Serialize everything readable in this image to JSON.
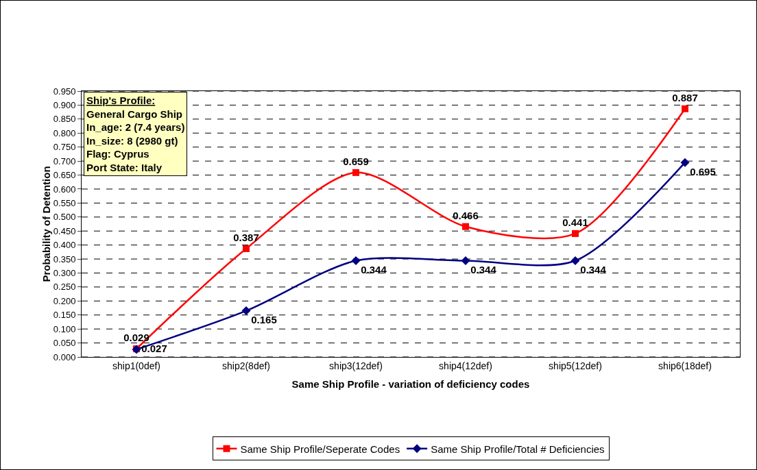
{
  "chart_data": {
    "type": "line",
    "xlabel": "Same Ship Profile - variation of deficiency codes",
    "ylabel": "Probability of Detention",
    "categories": [
      "ship1(0def)",
      "ship2(8def)",
      "ship3(12def)",
      "ship4(12def)",
      "ship5(12def)",
      "ship6(18def)"
    ],
    "series": [
      {
        "name": "Same Ship Profile/Seperate Codes",
        "color": "#ff0000",
        "marker": "square",
        "values": [
          0.029,
          0.387,
          0.659,
          0.466,
          0.441,
          0.887
        ]
      },
      {
        "name": "Same Ship Profile/Total # Deficiencies",
        "color": "#000080",
        "marker": "diamond",
        "values": [
          0.027,
          0.165,
          0.344,
          0.344,
          0.344,
          0.695
        ]
      }
    ],
    "ylim": [
      0,
      0.95
    ],
    "yticks": [
      {
        "value": 0,
        "label": "0.000"
      },
      {
        "value": 0.05,
        "label": "0.050"
      },
      {
        "value": 0.1,
        "label": "0.100"
      },
      {
        "value": 0.15,
        "label": "0.150"
      },
      {
        "value": 0.2,
        "label": "0.200"
      },
      {
        "value": 0.25,
        "label": "0.250"
      },
      {
        "value": 0.3,
        "label": "0.300"
      },
      {
        "value": 0.35,
        "label": "0.350"
      },
      {
        "value": 0.4,
        "label": "0.400"
      },
      {
        "value": 0.45,
        "label": "0.450"
      },
      {
        "value": 0.5,
        "label": "0.500"
      },
      {
        "value": 0.55,
        "label": "0.550"
      },
      {
        "value": 0.6,
        "label": "0.600"
      },
      {
        "value": 0.65,
        "label": "0.650"
      },
      {
        "value": 0.7,
        "label": "0.700"
      },
      {
        "value": 0.75,
        "label": "0.750"
      },
      {
        "value": 0.8,
        "label": "0.800"
      },
      {
        "value": 0.85,
        "label": "0.850"
      },
      {
        "value": 0.9,
        "label": "0.900"
      },
      {
        "value": 0.95,
        "label": "0.950"
      }
    ],
    "annotations": [
      "Ship's Profile:",
      "General Cargo Ship",
      "In_age: 2 (7.4 years)",
      "In_size: 8 (2980 gt)",
      "Flag: Cyprus",
      "Port State: Italy"
    ],
    "data_labels": true,
    "grid": "y",
    "legend": "bottom",
    "line_style": "solid"
  }
}
